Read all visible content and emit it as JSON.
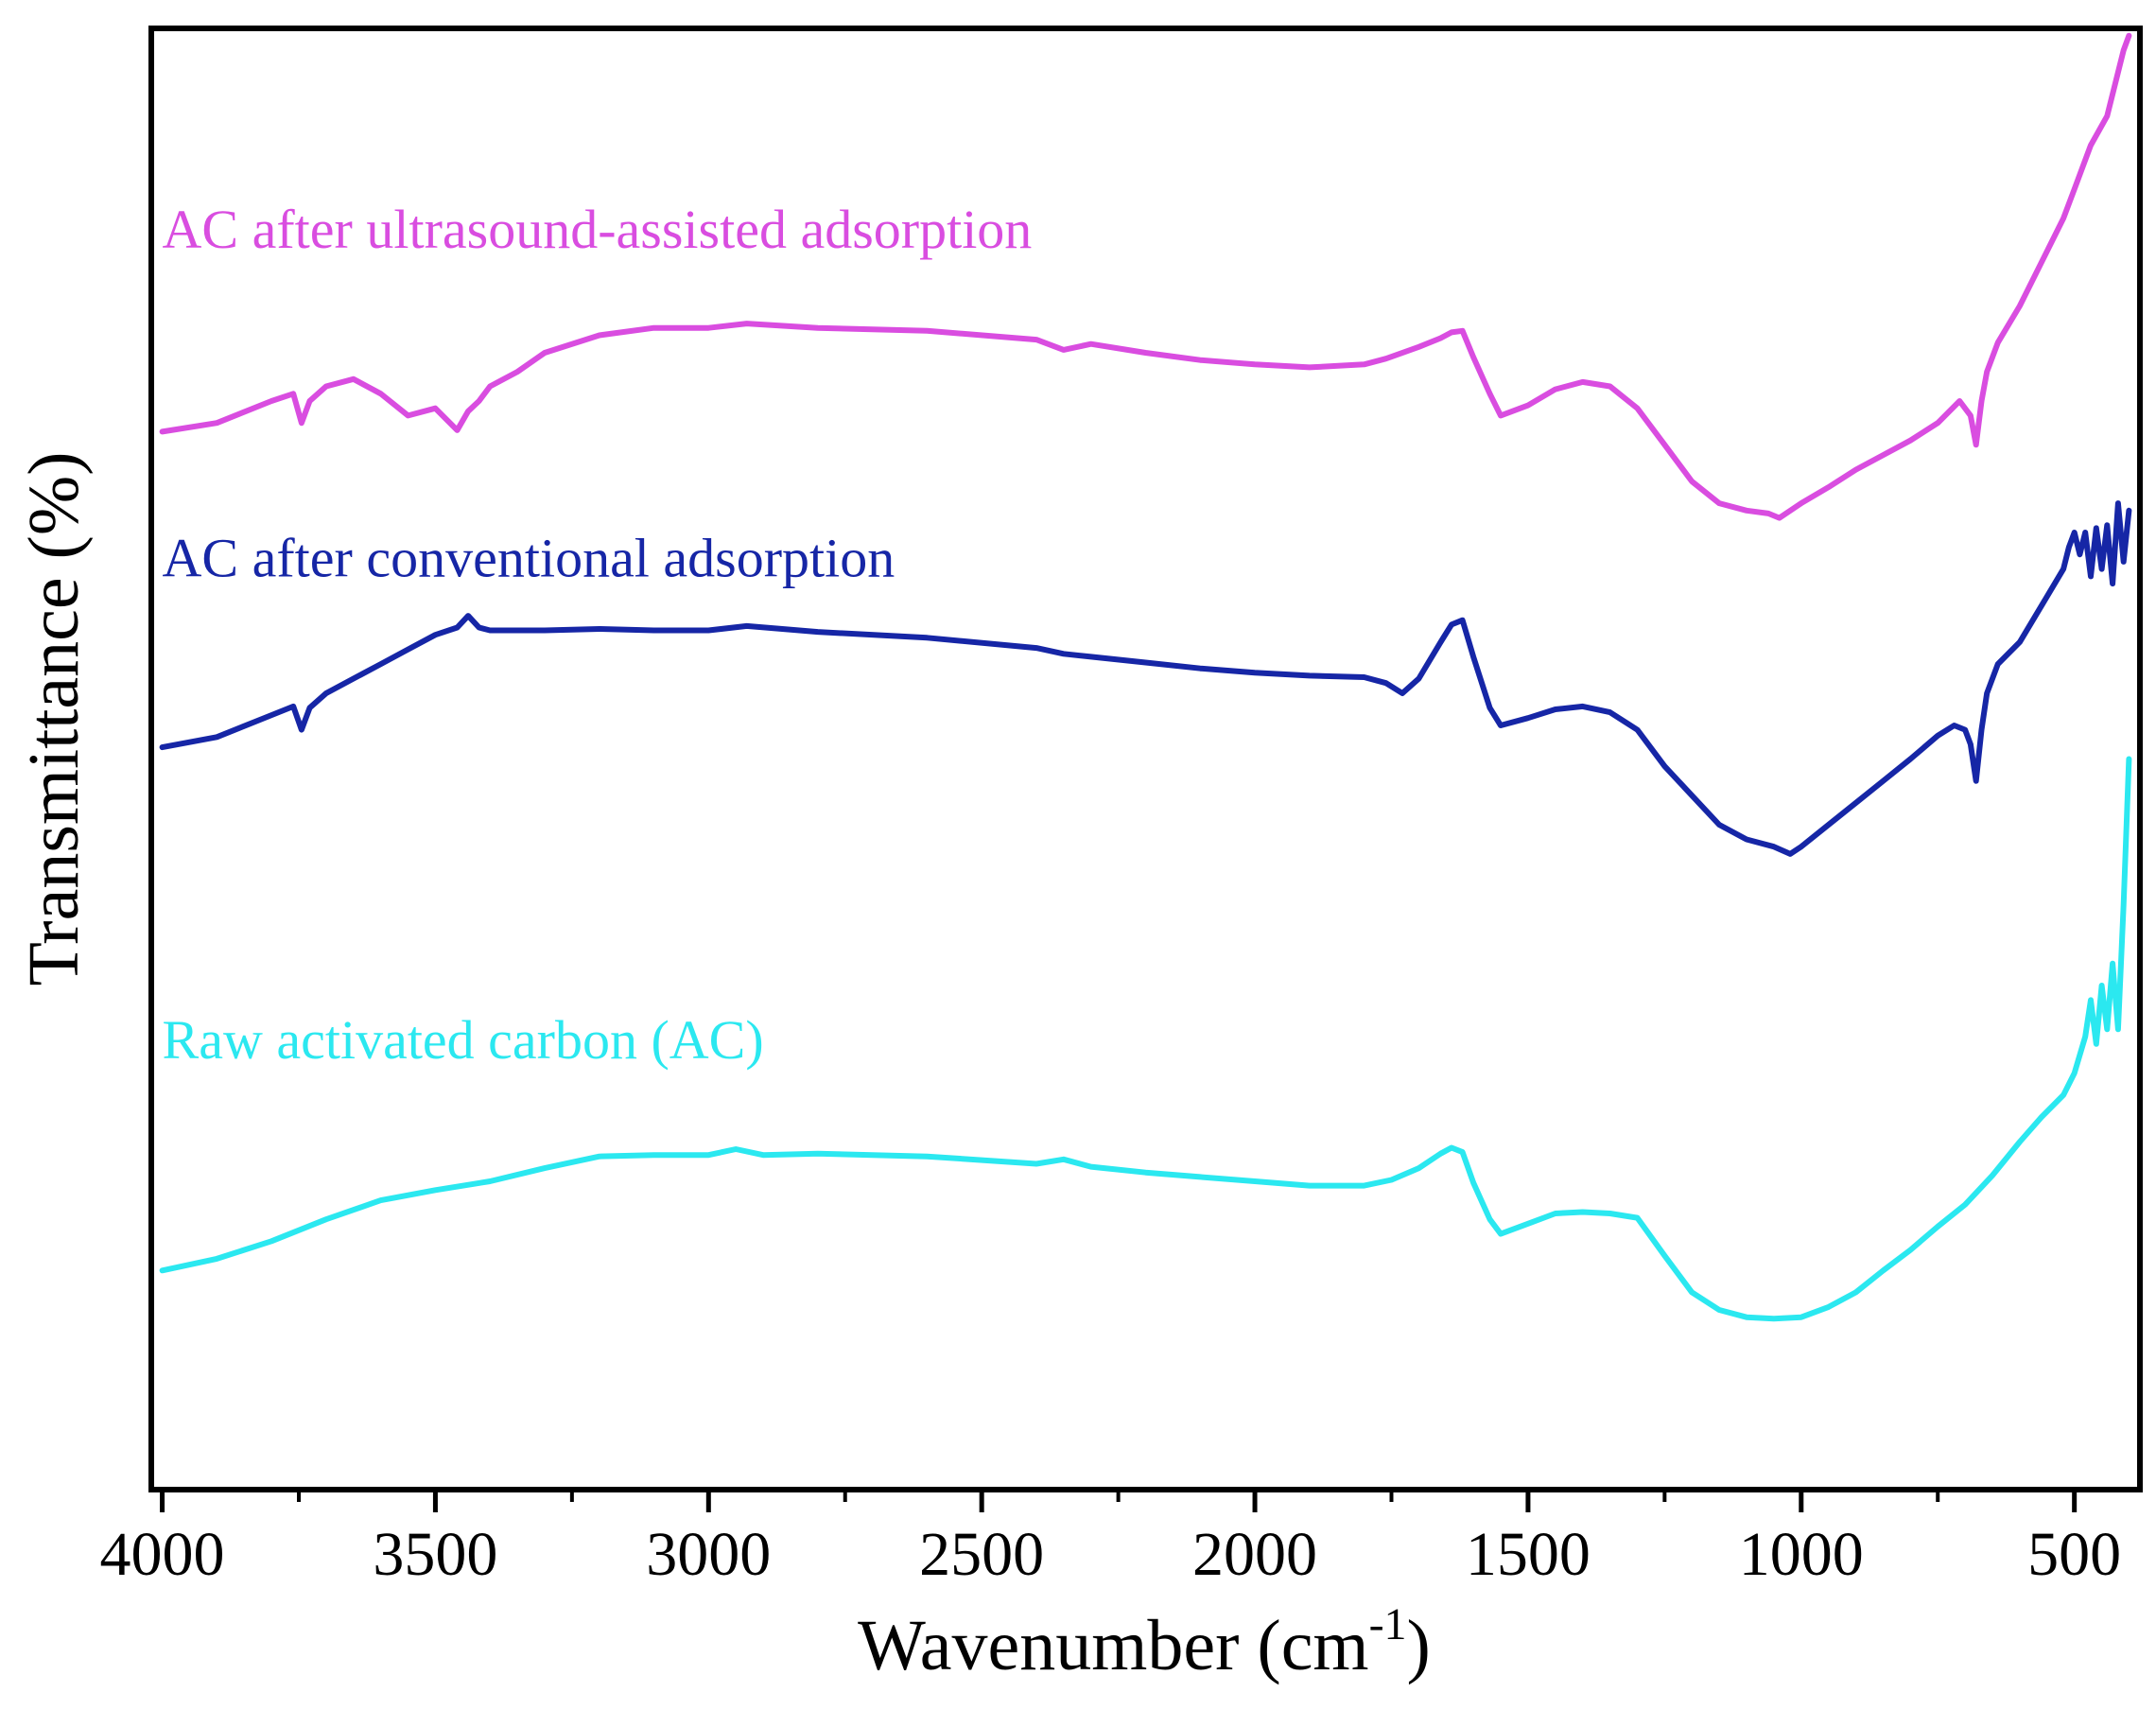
{
  "chart_data": {
    "type": "line",
    "xlabel": "Wavenumber (cm",
    "xlabel_sup": "-1",
    "xlabel_close": ")",
    "ylabel": "Transmittance (%)",
    "xlim": [
      4020,
      380
    ],
    "x_reversed": true,
    "ylim": [
      0,
      100
    ],
    "y_ticks_shown": false,
    "grid": false,
    "x_ticks": [
      4000,
      3500,
      3000,
      2500,
      2000,
      1500,
      1000,
      500
    ],
    "x_tick_labels": [
      "4000",
      "3500",
      "3000",
      "2500",
      "2000",
      "1500",
      "1000",
      "500"
    ],
    "x_minor_ticks": [
      3750,
      3250,
      2750,
      2250,
      1750,
      1250,
      750
    ],
    "series": [
      {
        "name": "AC after ultrasound-assisted adsorption",
        "color": "#d94de0",
        "x": [
          4000,
          3900,
          3800,
          3760,
          3745,
          3730,
          3700,
          3650,
          3600,
          3550,
          3500,
          3460,
          3440,
          3420,
          3400,
          3350,
          3300,
          3200,
          3100,
          3000,
          2930,
          2800,
          2600,
          2400,
          2350,
          2300,
          2200,
          2100,
          2000,
          1900,
          1800,
          1760,
          1700,
          1660,
          1640,
          1620,
          1600,
          1570,
          1550,
          1500,
          1450,
          1400,
          1350,
          1300,
          1250,
          1200,
          1150,
          1100,
          1060,
          1040,
          1000,
          950,
          900,
          850,
          800,
          750,
          710,
          690,
          680,
          670,
          660,
          640,
          600,
          560,
          520,
          500,
          470,
          440,
          420,
          410,
          400
        ],
        "y": [
          72.4,
          73.0,
          74.5,
          75.0,
          73.0,
          74.5,
          75.5,
          76.0,
          75.0,
          73.5,
          74.0,
          72.5,
          73.8,
          74.5,
          75.5,
          76.5,
          77.8,
          79.0,
          79.5,
          79.5,
          79.8,
          79.5,
          79.3,
          78.7,
          78.0,
          78.4,
          77.8,
          77.3,
          77.0,
          76.8,
          77.0,
          77.4,
          78.2,
          78.8,
          79.2,
          79.3,
          77.5,
          75.0,
          73.5,
          74.2,
          75.3,
          75.8,
          75.5,
          74.0,
          71.5,
          69.0,
          67.5,
          67.0,
          66.8,
          66.5,
          67.5,
          68.6,
          69.8,
          70.8,
          71.8,
          73.0,
          74.5,
          73.5,
          71.5,
          74.5,
          76.5,
          78.5,
          81.0,
          84.0,
          87.0,
          89.0,
          92.0,
          94.0,
          97.0,
          98.5,
          99.5
        ]
      },
      {
        "name": "AC after conventional adsorption",
        "color": "#1626a6",
        "x": [
          4000,
          3900,
          3800,
          3760,
          3745,
          3730,
          3700,
          3650,
          3600,
          3550,
          3500,
          3460,
          3440,
          3420,
          3400,
          3300,
          3200,
          3100,
          3000,
          2930,
          2800,
          2600,
          2400,
          2350,
          2300,
          2200,
          2100,
          2000,
          1900,
          1800,
          1760,
          1730,
          1700,
          1660,
          1640,
          1620,
          1600,
          1570,
          1550,
          1500,
          1450,
          1400,
          1350,
          1300,
          1250,
          1200,
          1150,
          1100,
          1050,
          1020,
          1000,
          950,
          900,
          850,
          800,
          750,
          720,
          700,
          690,
          680,
          670,
          660,
          640,
          600,
          560,
          520,
          510,
          500,
          490,
          480,
          470,
          460,
          450,
          440,
          430,
          420,
          410,
          400
        ],
        "y": [
          50.8,
          51.5,
          53.0,
          53.6,
          52.0,
          53.5,
          54.5,
          55.5,
          56.5,
          57.5,
          58.5,
          59.0,
          59.8,
          59.0,
          58.8,
          58.8,
          58.9,
          58.8,
          58.8,
          59.1,
          58.7,
          58.3,
          57.6,
          57.2,
          57.0,
          56.6,
          56.2,
          55.9,
          55.7,
          55.6,
          55.2,
          54.5,
          55.5,
          58.0,
          59.2,
          59.5,
          57.0,
          53.5,
          52.3,
          52.8,
          53.4,
          53.6,
          53.2,
          52.0,
          49.5,
          47.5,
          45.5,
          44.5,
          44.0,
          43.5,
          44.0,
          45.5,
          47.0,
          48.5,
          50.0,
          51.6,
          52.3,
          52.0,
          51.0,
          48.5,
          52.0,
          54.5,
          56.5,
          58.0,
          60.5,
          63.0,
          64.5,
          65.5,
          64.0,
          65.5,
          62.5,
          65.8,
          63.0,
          66.0,
          62.0,
          67.5,
          63.5,
          67.0
        ]
      },
      {
        "name": "Raw activated carbon (AC)",
        "color": "#2be8f0",
        "x": [
          4000,
          3900,
          3800,
          3700,
          3600,
          3500,
          3400,
          3300,
          3200,
          3100,
          3000,
          2950,
          2900,
          2800,
          2700,
          2600,
          2400,
          2350,
          2300,
          2200,
          2100,
          2000,
          1900,
          1800,
          1750,
          1700,
          1660,
          1640,
          1620,
          1600,
          1570,
          1550,
          1500,
          1450,
          1400,
          1350,
          1300,
          1250,
          1200,
          1150,
          1100,
          1050,
          1000,
          950,
          900,
          850,
          800,
          750,
          700,
          650,
          600,
          560,
          520,
          500,
          480,
          470,
          460,
          450,
          440,
          430,
          420,
          410,
          400
        ],
        "y": [
          15.0,
          15.8,
          17.0,
          18.5,
          19.8,
          20.5,
          21.1,
          22.0,
          22.8,
          22.9,
          22.9,
          23.3,
          22.9,
          23.0,
          22.9,
          22.8,
          22.3,
          22.6,
          22.1,
          21.7,
          21.4,
          21.1,
          20.8,
          20.8,
          21.2,
          22.0,
          23.0,
          23.4,
          23.1,
          21.0,
          18.5,
          17.5,
          18.2,
          18.9,
          19.0,
          18.9,
          18.6,
          16.0,
          13.5,
          12.3,
          11.8,
          11.7,
          11.8,
          12.5,
          13.5,
          15.0,
          16.4,
          18.0,
          19.5,
          21.5,
          23.8,
          25.5,
          27.0,
          28.5,
          31.0,
          33.5,
          30.5,
          34.5,
          31.5,
          36.0,
          31.5,
          40.0,
          50.0
        ]
      }
    ],
    "annotations": [
      {
        "text": "AC after ultrasound-assisted adsorption",
        "x": 4000,
        "y": 85.0,
        "color": "#d94de0"
      },
      {
        "text": "AC after conventional adsorption",
        "x": 4000,
        "y": 62.5,
        "color": "#1626a6"
      },
      {
        "text": "Raw activated carbon (AC)",
        "x": 4000,
        "y": 29.5,
        "color": "#2be8f0"
      }
    ]
  }
}
